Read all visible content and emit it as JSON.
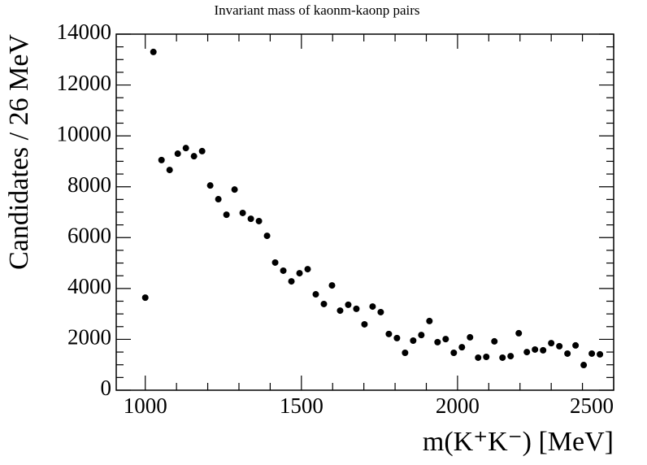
{
  "chart_data": {
    "type": "scatter",
    "title": "Invariant mass of kaonm-kaonp pairs",
    "x_label": "m(K⁺K⁻) [MeV]",
    "y_label": "Candidates / 26 MeV",
    "x": [
      1000,
      1026,
      1052,
      1078,
      1104,
      1130,
      1156,
      1182,
      1208,
      1234,
      1260,
      1286,
      1312,
      1338,
      1364,
      1390,
      1416,
      1442,
      1468,
      1494,
      1520,
      1546,
      1572,
      1598,
      1624,
      1650,
      1676,
      1702,
      1728,
      1754,
      1780,
      1806,
      1832,
      1858,
      1884,
      1910,
      1936,
      1962,
      1988,
      2014,
      2040,
      2066,
      2092,
      2118,
      2144,
      2170,
      2196,
      2222,
      2248,
      2274,
      2300,
      2326,
      2352,
      2378,
      2404,
      2430,
      2456
    ],
    "values": [
      3640,
      13300,
      9050,
      8660,
      9300,
      9520,
      9200,
      9400,
      8050,
      7510,
      6900,
      7890,
      6970,
      6740,
      6650,
      6070,
      5020,
      4700,
      4280,
      4600,
      4760,
      3770,
      3390,
      4120,
      3130,
      3360,
      3200,
      2590,
      3290,
      3070,
      2210,
      2050,
      1470,
      1950,
      2170,
      2720,
      1890,
      2010,
      1470,
      1690,
      2080,
      1280,
      1310,
      1920,
      1280,
      1340,
      2240,
      1500,
      1600,
      1570,
      1850,
      1730,
      1440,
      1760,
      990,
      1440,
      1410
    ],
    "color": "#000000",
    "xlim": [
      907,
      2500
    ],
    "ylim": [
      0,
      14000
    ],
    "xticks": [
      1000,
      1500,
      2000,
      2500
    ],
    "yticks": [
      0,
      2000,
      4000,
      6000,
      8000,
      10000,
      12000,
      14000
    ]
  }
}
